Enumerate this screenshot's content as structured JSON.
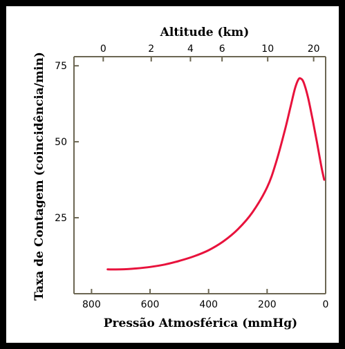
{
  "chart_data": {
    "type": "line",
    "title": "",
    "xlabel": "Pressão Atmosférica (mmHg)",
    "ylabel": "Taxa de Contagem (coincidência/min)",
    "x2label": "Altitude (km)",
    "xlim": [
      860,
      0
    ],
    "ylim": [
      0,
      78
    ],
    "x_ticks": [
      800,
      600,
      400,
      200,
      0
    ],
    "y_ticks": [
      25,
      50,
      75
    ],
    "x2_ticks": [
      0,
      2,
      4,
      6,
      10,
      20
    ],
    "x2_tick_pressures": [
      760,
      596,
      462,
      354,
      198,
      41
    ],
    "grid": false,
    "colors": {
      "line": "#e8123c",
      "axis": "#6b6652"
    },
    "series": [
      {
        "x": [
          745,
          700,
          650,
          600,
          550,
          500,
          450,
          400,
          350,
          300,
          250,
          200,
          170,
          140,
          120,
          105,
          93,
          85,
          75,
          60,
          45,
          30,
          15,
          5
        ],
        "y": [
          8.0,
          8.0,
          8.3,
          8.8,
          9.6,
          10.8,
          12.3,
          14.3,
          17.2,
          21.2,
          26.8,
          35.0,
          43.0,
          53.5,
          61.5,
          67.5,
          70.5,
          70.8,
          69.5,
          64.5,
          57.5,
          50.0,
          42.0,
          37.5
        ]
      }
    ]
  }
}
